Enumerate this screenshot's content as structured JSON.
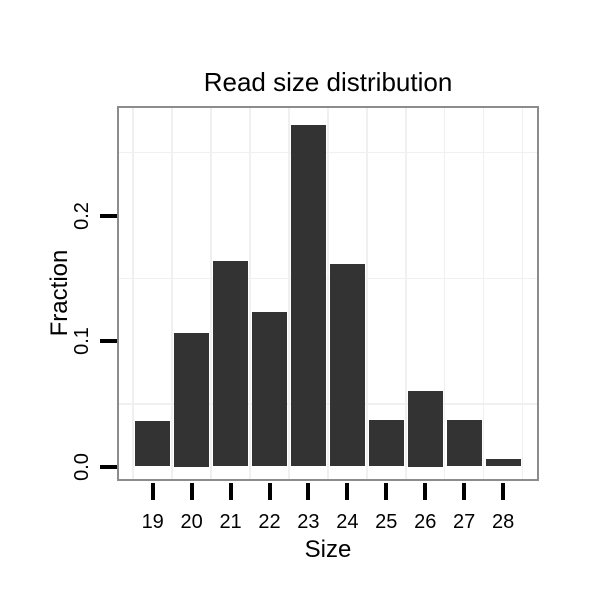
{
  "chart_data": {
    "type": "bar",
    "title": "Read size distribution",
    "xlabel": "Size",
    "ylabel": "Fraction",
    "categories": [
      19,
      20,
      21,
      22,
      23,
      24,
      25,
      26,
      27,
      28
    ],
    "values": [
      0.036,
      0.106,
      0.164,
      0.123,
      0.272,
      0.161,
      0.037,
      0.06,
      0.037,
      0.006
    ],
    "x_tick_labels": [
      "19",
      "20",
      "21",
      "22",
      "23",
      "24",
      "25",
      "26",
      "27",
      "28"
    ],
    "y_tick_labels": [
      "0.0",
      "0.1",
      "0.2"
    ],
    "y_tick_values": [
      0.0,
      0.1,
      0.2
    ],
    "y_minor_gridlines": [
      0.05,
      0.15,
      0.25
    ],
    "x_minor_gridlines": [
      18.5,
      19.5,
      20.5,
      21.5,
      22.5,
      23.5,
      24.5,
      25.5,
      26.5,
      27.5,
      28.5
    ],
    "xlim": [
      18.083,
      28.922
    ],
    "ylim": [
      -0.01155,
      0.28725
    ],
    "bar_width": 0.9,
    "grid": "minor-only",
    "legend": "none",
    "colors": {
      "bar_fill": "#333333",
      "panel_border": "#8c8c8c",
      "grid_line": "#f0f0f0",
      "tick": "#000000",
      "text": "#000000",
      "background": "#ffffff"
    }
  }
}
